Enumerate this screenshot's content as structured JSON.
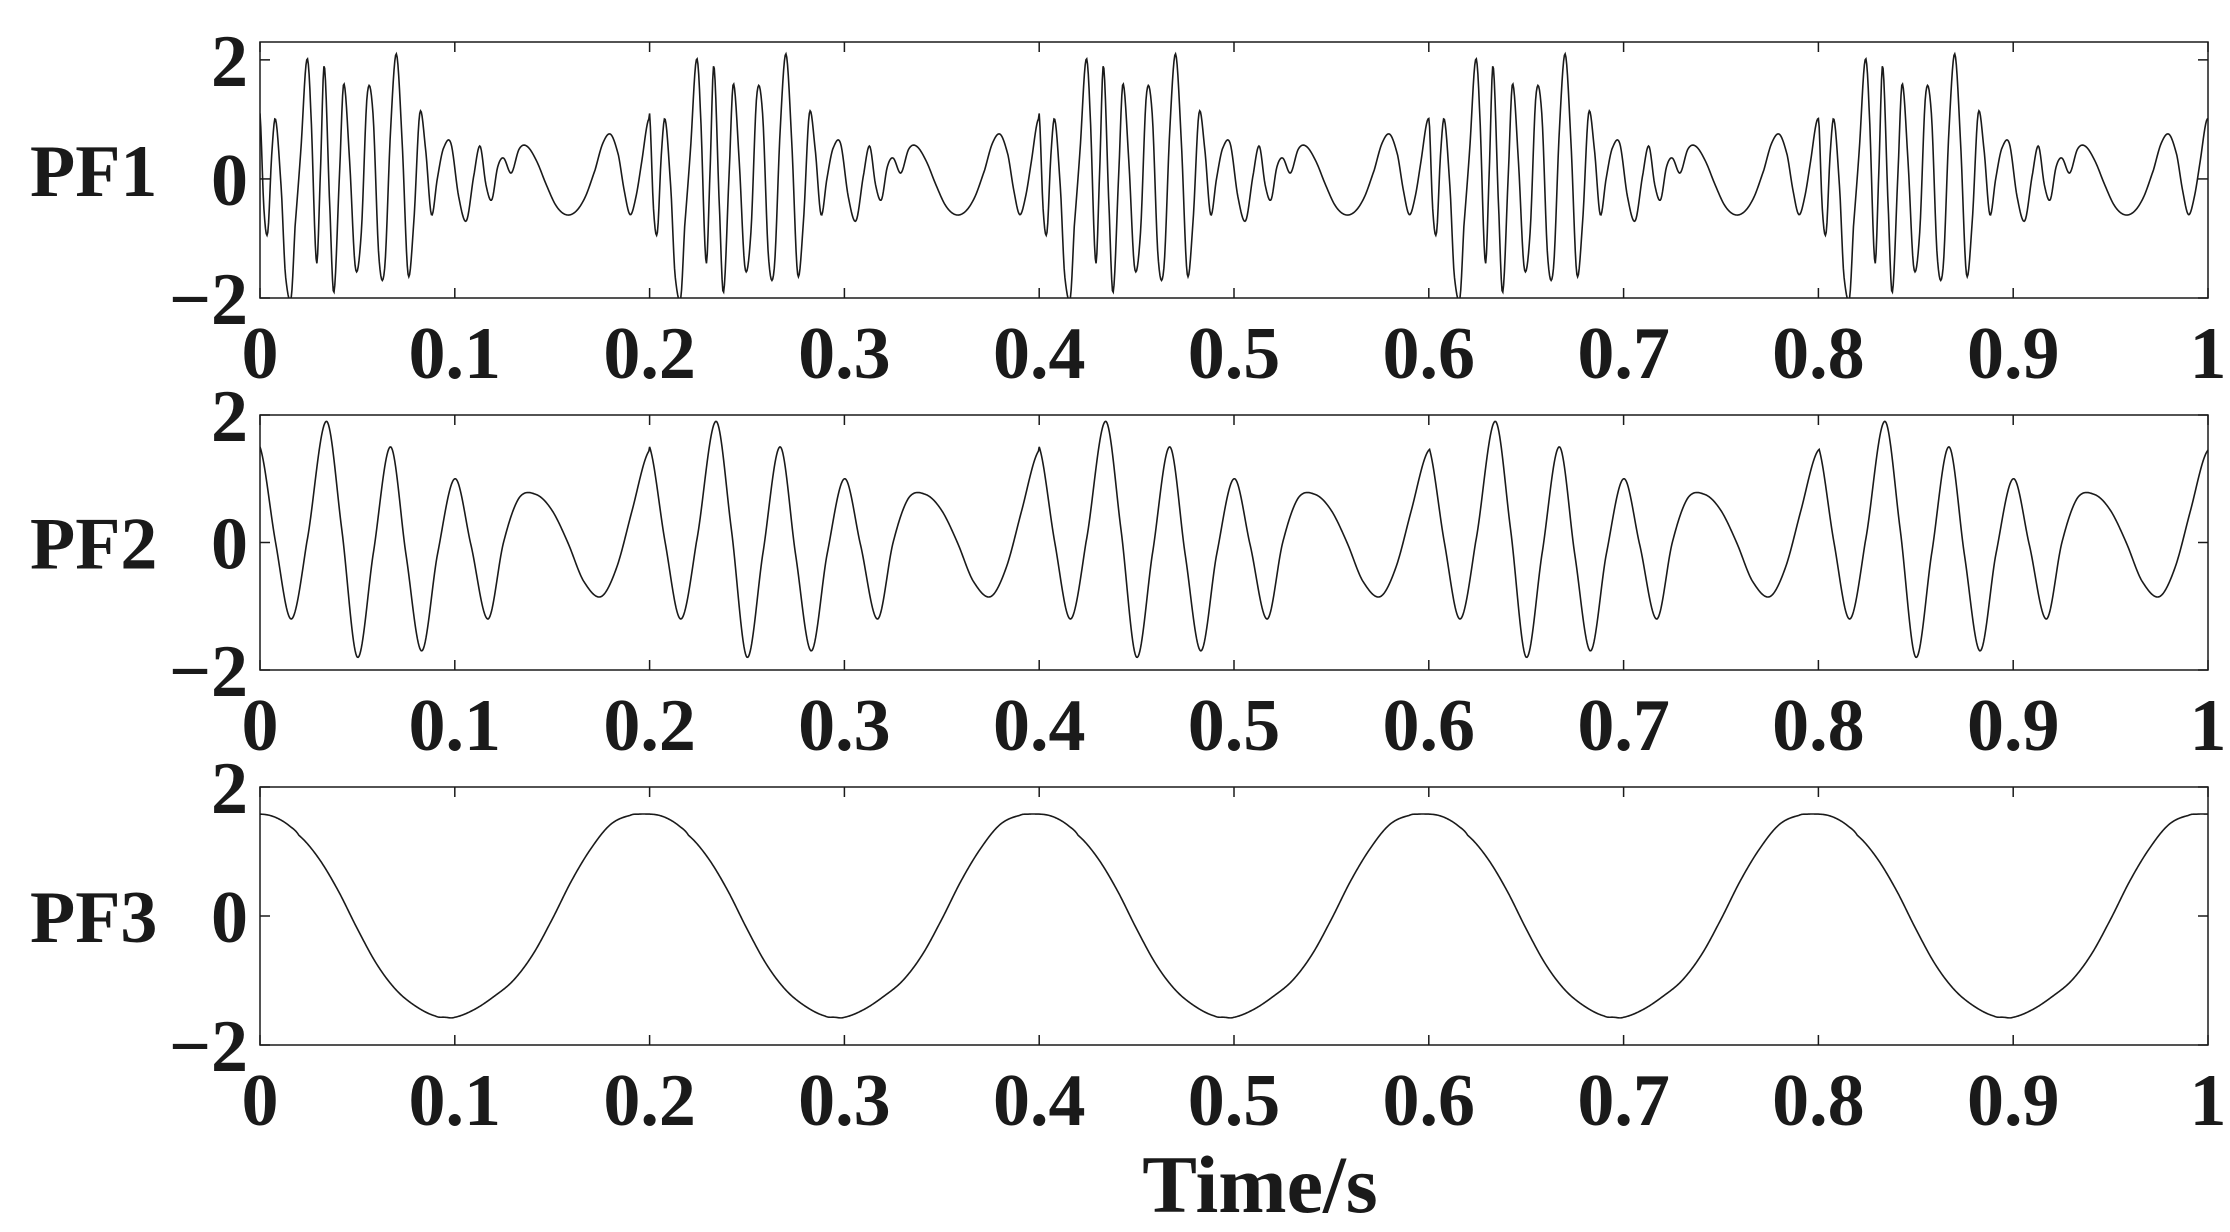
{
  "figure": {
    "xlabel": "Time/s",
    "line_color": "#1a1a1a",
    "background": "#ffffff"
  },
  "chart_data": [
    {
      "type": "line",
      "ylabel": "PF1",
      "xlim": [
        0,
        1
      ],
      "ylim": [
        -2,
        2.3
      ],
      "xticks": [
        "0",
        "0.1",
        "0.2",
        "0.3",
        "0.4",
        "0.5",
        "0.6",
        "0.7",
        "0.8",
        "0.9",
        "1"
      ],
      "xtick_values": [
        0,
        0.1,
        0.2,
        0.3,
        0.4,
        0.5,
        0.6,
        0.7,
        0.8,
        0.9,
        1
      ],
      "yticks": [
        "−2",
        "0",
        "2"
      ],
      "ytick_values": [
        -2,
        0,
        2
      ],
      "grid": false,
      "series": [
        {
          "period": 0.2,
          "x": [
            0.0,
            0.002,
            0.004,
            0.006,
            0.008,
            0.011,
            0.013,
            0.016,
            0.018,
            0.021,
            0.024,
            0.026,
            0.029,
            0.031,
            0.033,
            0.036,
            0.038,
            0.041,
            0.043,
            0.046,
            0.049,
            0.052,
            0.055,
            0.058,
            0.061,
            0.064,
            0.067,
            0.07,
            0.073,
            0.076,
            0.079,
            0.082,
            0.085,
            0.088,
            0.091,
            0.094,
            0.098,
            0.102,
            0.106,
            0.11,
            0.113,
            0.116,
            0.119,
            0.122,
            0.125,
            0.129,
            0.133,
            0.137,
            0.142,
            0.147,
            0.152,
            0.157,
            0.162,
            0.167,
            0.172,
            0.176,
            0.18,
            0.184,
            0.187,
            0.19,
            0.193,
            0.196,
            0.199
          ],
          "y": [
            1.1,
            -0.5,
            -0.9,
            0.4,
            1.0,
            -0.2,
            -1.6,
            -2.0,
            -0.8,
            0.5,
            2.0,
            1.2,
            -1.4,
            0.1,
            1.9,
            -0.6,
            -1.9,
            0.2,
            1.6,
            0.3,
            -1.5,
            -0.9,
            1.4,
            1.1,
            -1.3,
            -1.5,
            0.8,
            2.1,
            0.6,
            -1.6,
            -0.7,
            1.1,
            0.5,
            -0.6,
            0.0,
            0.5,
            0.6,
            -0.3,
            -0.7,
            0.1,
            0.55,
            -0.1,
            -0.35,
            0.2,
            0.35,
            0.1,
            0.5,
            0.55,
            0.3,
            -0.1,
            -0.45,
            -0.6,
            -0.55,
            -0.3,
            0.15,
            0.6,
            0.75,
            0.4,
            -0.2,
            -0.6,
            -0.3,
            0.3,
            0.95
          ]
        }
      ]
    },
    {
      "type": "line",
      "ylabel": "PF2",
      "xlim": [
        0,
        1
      ],
      "ylim": [
        -2,
        2
      ],
      "xticks": [
        "0",
        "0.1",
        "0.2",
        "0.3",
        "0.4",
        "0.5",
        "0.6",
        "0.7",
        "0.8",
        "0.9",
        "1"
      ],
      "xtick_values": [
        0,
        0.1,
        0.2,
        0.3,
        0.4,
        0.5,
        0.6,
        0.7,
        0.8,
        0.9,
        1
      ],
      "yticks": [
        "−2",
        "0",
        "2"
      ],
      "ytick_values": [
        -2,
        0,
        2
      ],
      "grid": false,
      "series": [
        {
          "period": 0.2,
          "x": [
            0.0,
            0.008,
            0.016,
            0.024,
            0.034,
            0.042,
            0.05,
            0.058,
            0.067,
            0.075,
            0.083,
            0.091,
            0.1,
            0.108,
            0.117,
            0.125,
            0.133,
            0.142,
            0.15,
            0.158,
            0.166,
            0.175,
            0.183,
            0.191,
            0.199
          ],
          "y": [
            1.5,
            0.0,
            -1.2,
            0.0,
            1.9,
            0.2,
            -1.8,
            -0.2,
            1.5,
            -0.2,
            -1.7,
            -0.2,
            1.0,
            0.0,
            -1.2,
            0.0,
            0.7,
            0.75,
            0.5,
            0.0,
            -0.6,
            -0.85,
            -0.4,
            0.5,
            1.4
          ]
        }
      ]
    },
    {
      "type": "line",
      "ylabel": "PF3",
      "xlim": [
        0,
        1
      ],
      "ylim": [
        -2,
        2
      ],
      "xticks": [
        "0",
        "0.1",
        "0.2",
        "0.3",
        "0.4",
        "0.5",
        "0.6",
        "0.7",
        "0.8",
        "0.9",
        "1"
      ],
      "xtick_values": [
        0,
        0.1,
        0.2,
        0.3,
        0.4,
        0.5,
        0.6,
        0.7,
        0.8,
        0.9,
        1
      ],
      "yticks": [
        "−2",
        "0",
        "2"
      ],
      "ytick_values": [
        -2,
        0,
        2
      ],
      "grid": false,
      "series": [
        {
          "period": 0.2,
          "x": [
            0.0,
            0.005,
            0.01,
            0.015,
            0.02,
            0.03,
            0.04,
            0.05,
            0.06,
            0.07,
            0.08,
            0.09,
            0.095,
            0.1,
            0.11,
            0.12,
            0.13,
            0.14,
            0.15,
            0.16,
            0.17,
            0.18,
            0.19,
            0.195,
            0.2
          ],
          "y": [
            1.58,
            1.56,
            1.5,
            1.4,
            1.25,
            0.9,
            0.4,
            -0.2,
            -0.75,
            -1.15,
            -1.4,
            -1.55,
            -1.57,
            -1.57,
            -1.45,
            -1.25,
            -1.0,
            -0.6,
            -0.05,
            0.55,
            1.05,
            1.42,
            1.56,
            1.58,
            1.58
          ]
        }
      ]
    }
  ]
}
